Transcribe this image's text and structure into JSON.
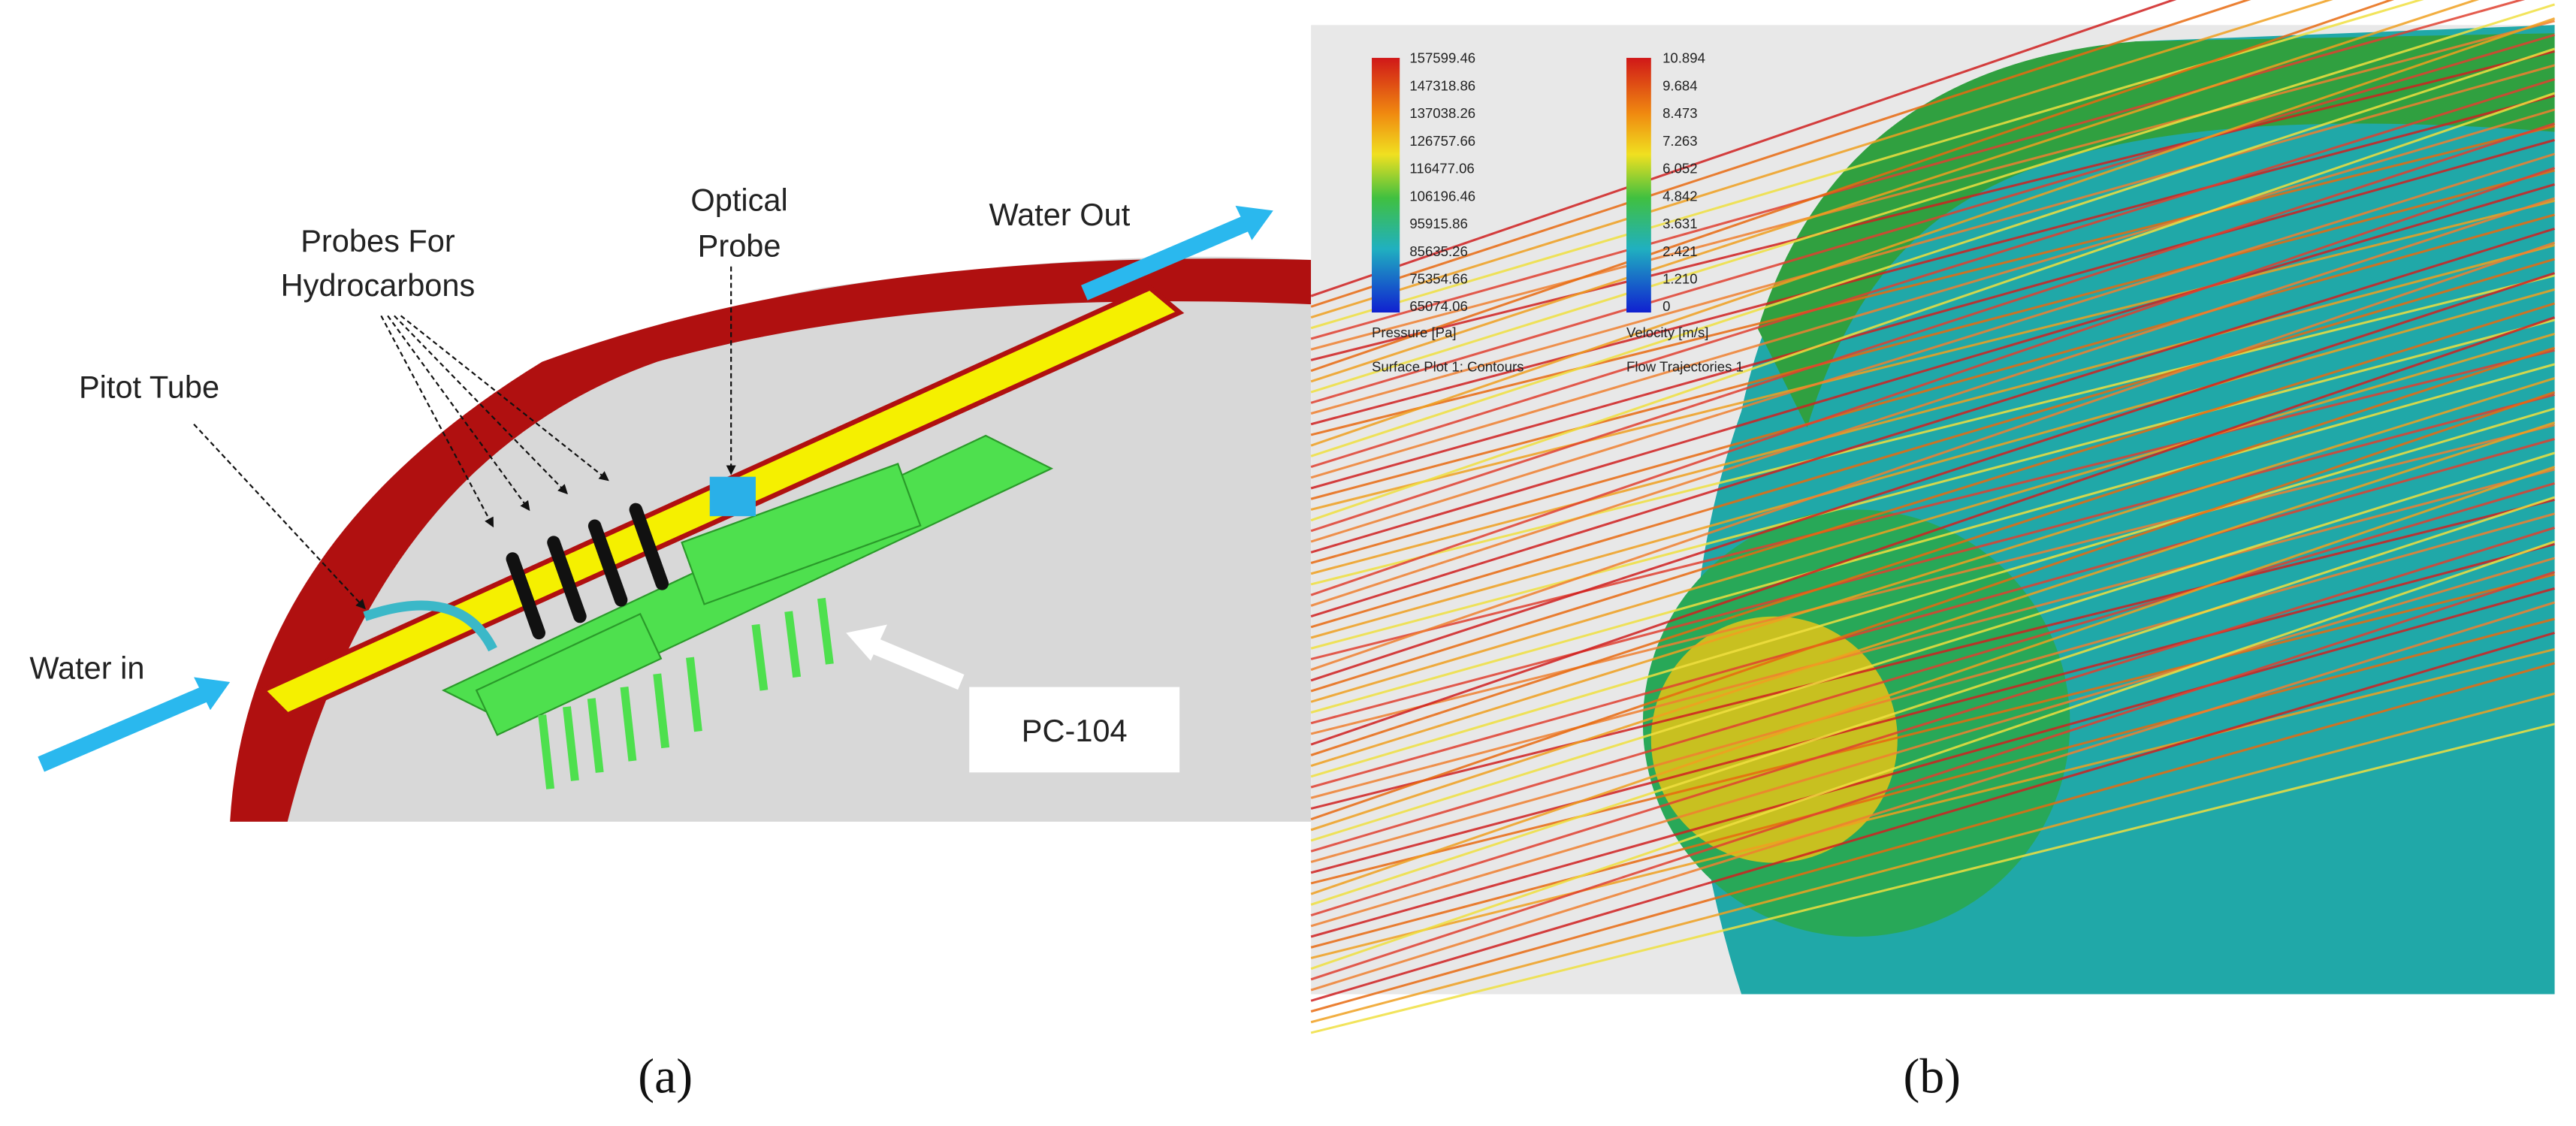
{
  "panels": [
    {
      "label": "(a)",
      "callouts": {
        "water_in": "Water in",
        "pitot_tube": "Pitot Tube",
        "probes": [
          "Probes For",
          "Hydrocarbons"
        ],
        "optical_probe": [
          "Optical",
          "Probe"
        ],
        "water_out": "Water Out",
        "pc104": "PC-104"
      }
    },
    {
      "label": "(b)",
      "pressure_legend": {
        "values": [
          "157599.46",
          "147318.86",
          "137038.26",
          "126757.66",
          "116477.06",
          "106196.46",
          "95915.86",
          "85635.26",
          "75354.66",
          "65074.06"
        ],
        "title": "Pressure [Pa]",
        "caption": "Surface Plot 1: Contours"
      },
      "velocity_legend": {
        "values": [
          "10.894",
          "9.684",
          "8.473",
          "7.263",
          "6.052",
          "4.842",
          "3.631",
          "2.421",
          "1.210",
          "0"
        ],
        "title": "Velocity [m/s]",
        "caption": "Flow Trajectories 1"
      }
    }
  ]
}
